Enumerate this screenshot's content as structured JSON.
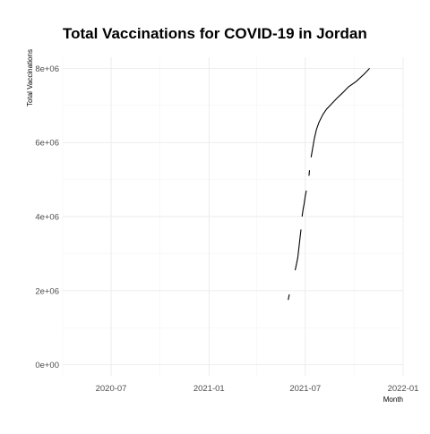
{
  "chart_data": {
    "type": "line",
    "title": "Total Vaccinations for COVID-19 in Jordan",
    "xlabel": "Month",
    "ylabel": "Total Vaccinations",
    "x_ticks": [
      {
        "date": "2020-07-01",
        "label": "2020-07"
      },
      {
        "date": "2021-01-01",
        "label": "2021-01"
      },
      {
        "date": "2021-07-01",
        "label": "2021-07"
      },
      {
        "date": "2022-01-01",
        "label": "2022-01"
      }
    ],
    "y_ticks": [
      {
        "value": 0,
        "label": "0e+00"
      },
      {
        "value": 2000000,
        "label": "2e+06"
      },
      {
        "value": 4000000,
        "label": "4e+06"
      },
      {
        "value": 6000000,
        "label": "6e+06"
      },
      {
        "value": 8000000,
        "label": "8e+06"
      }
    ],
    "xlim": [
      "2020-04-01",
      "2022-01-01"
    ],
    "ylim": [
      -300000,
      8300000
    ],
    "grid": true,
    "legend": "none",
    "series": [
      {
        "segments": [
          [
            [
              "2021-05-30",
              1750000
            ],
            [
              "2021-06-01",
              1900000
            ]
          ],
          [
            [
              "2021-06-12",
              2550000
            ],
            [
              "2021-06-15",
              2750000
            ],
            [
              "2021-06-17",
              2900000
            ],
            [
              "2021-06-19",
              3150000
            ],
            [
              "2021-06-21",
              3400000
            ],
            [
              "2021-06-23",
              3650000
            ]
          ],
          [
            [
              "2021-06-25",
              4000000
            ],
            [
              "2021-06-27",
              4200000
            ],
            [
              "2021-06-29",
              4350000
            ],
            [
              "2021-07-01",
              4550000
            ],
            [
              "2021-07-03",
              4700000
            ]
          ],
          [
            [
              "2021-07-08",
              5100000
            ],
            [
              "2021-07-09",
              5250000
            ]
          ],
          [
            [
              "2021-07-12",
              5600000
            ],
            [
              "2021-07-15",
              5850000
            ],
            [
              "2021-07-18",
              6100000
            ],
            [
              "2021-07-22",
              6350000
            ],
            [
              "2021-07-27",
              6550000
            ],
            [
              "2021-08-03",
              6750000
            ],
            [
              "2021-08-10",
              6900000
            ],
            [
              "2021-08-20",
              7050000
            ],
            [
              "2021-08-30",
              7200000
            ],
            [
              "2021-09-10",
              7350000
            ],
            [
              "2021-09-20",
              7500000
            ],
            [
              "2021-10-05",
              7650000
            ],
            [
              "2021-10-20",
              7850000
            ],
            [
              "2021-10-30",
              8000000
            ]
          ]
        ]
      }
    ]
  }
}
